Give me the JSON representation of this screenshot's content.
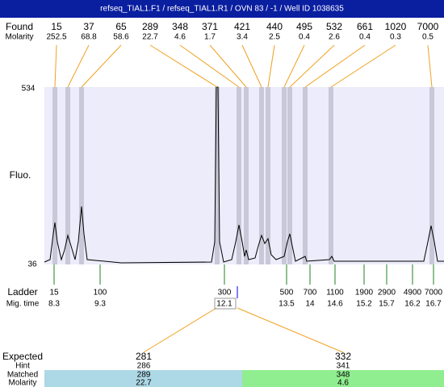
{
  "header": {
    "title": "refseq_TIAL1.F1 / refseq_TIAL1.R1 / OVN 83 / -1 / Well ID 1038635"
  },
  "found": {
    "label": "Found",
    "molarity_label": "Molarity",
    "peaks": [
      {
        "size": "15",
        "molarity": "252.5"
      },
      {
        "size": "37",
        "molarity": "68.8"
      },
      {
        "size": "65",
        "molarity": "58.6"
      },
      {
        "size": "289",
        "molarity": "22.7"
      },
      {
        "size": "348",
        "molarity": "4.6"
      },
      {
        "size": "371",
        "molarity": "1.7"
      },
      {
        "size": "421",
        "molarity": "3.4"
      },
      {
        "size": "440",
        "molarity": "2.5"
      },
      {
        "size": "495",
        "molarity": "0.4"
      },
      {
        "size": "532",
        "molarity": "2.6"
      },
      {
        "size": "661",
        "molarity": "0.4"
      },
      {
        "size": "1020",
        "molarity": "0.3"
      },
      {
        "size": "7000",
        "molarity": "0.5"
      }
    ]
  },
  "plot": {
    "y_label": "Fluo.",
    "y_max": "534",
    "y_min": "36"
  },
  "ladder": {
    "label": "Ladder",
    "time_label": "Mig. time",
    "bands": [
      {
        "size": "15",
        "time": "8.3"
      },
      {
        "size": "100",
        "time": "9.3"
      },
      {
        "size": "300",
        "time": "12.1"
      },
      {
        "size": "500",
        "time": "13.5"
      },
      {
        "size": "700",
        "time": "14"
      },
      {
        "size": "1100",
        "time": "14.6"
      },
      {
        "size": "1900",
        "time": "15.2"
      },
      {
        "size": "2900",
        "time": "15.7"
      },
      {
        "size": "4900",
        "time": "16.2"
      },
      {
        "size": "7000",
        "time": "16.7"
      }
    ]
  },
  "expected": {
    "label": "Expected",
    "hint_label": "Hint",
    "matched_label": "Matched",
    "molarity_label": "Molarity",
    "items": [
      {
        "expected": "281",
        "hint": "286",
        "matched": "289",
        "molarity": "22.7"
      },
      {
        "expected": "332",
        "hint": "341",
        "matched": "348",
        "molarity": "4.6"
      }
    ]
  }
}
